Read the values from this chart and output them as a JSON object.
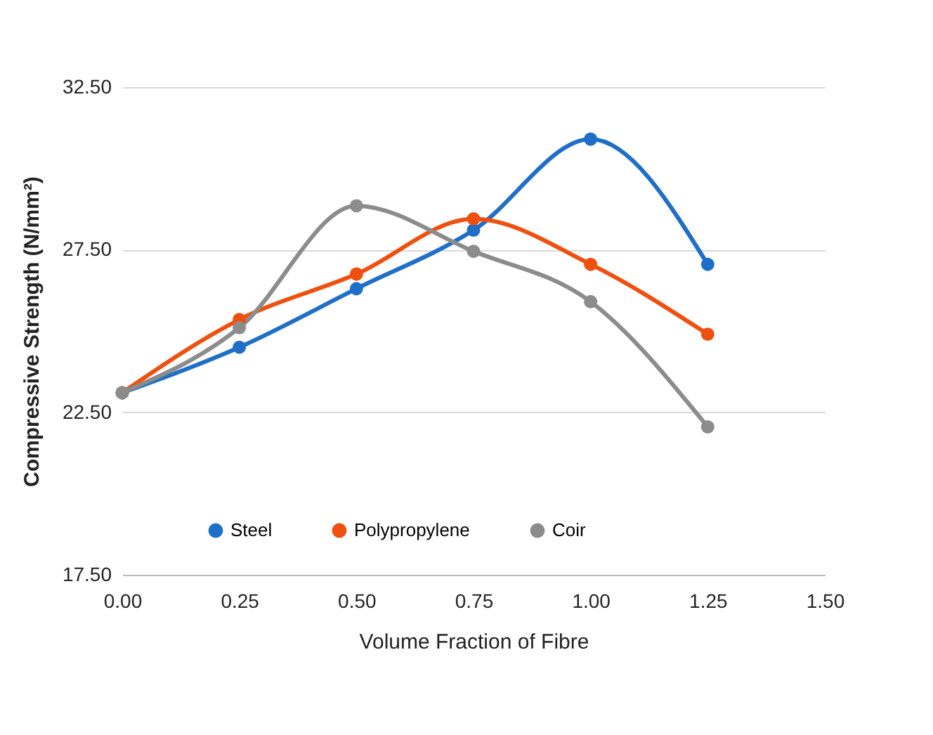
{
  "chart_data": {
    "type": "line",
    "xlabel": "Volume Fraction of Fibre",
    "ylabel": "Compressive Strength (N/mm²)",
    "x": [
      0,
      0.25,
      0.5,
      0.75,
      1.0,
      1.25
    ],
    "series": [
      {
        "name": "Steel",
        "color": "#1f6fc8",
        "values": [
          23.1,
          24.5,
          26.3,
          28.1,
          30.9,
          27.05
        ]
      },
      {
        "name": "Polypropylene",
        "color": "#f0500f",
        "values": [
          23.1,
          25.35,
          26.75,
          28.45,
          27.05,
          24.9
        ]
      },
      {
        "name": "Coir",
        "color": "#8c8c8c",
        "values": [
          23.1,
          25.1,
          28.85,
          27.45,
          25.9,
          22.05
        ]
      }
    ],
    "xlim": [
      0,
      1.5
    ],
    "xticks": [
      {
        "value": 0,
        "label": "0.00"
      },
      {
        "value": 0.25,
        "label": "0.25"
      },
      {
        "value": 0.5,
        "label": "0.50"
      },
      {
        "value": 0.75,
        "label": "0.75"
      },
      {
        "value": 1,
        "label": "1.00"
      },
      {
        "value": 1.25,
        "label": "1.25"
      },
      {
        "value": 1.5,
        "label": "1.50"
      }
    ],
    "ylim": [
      17.5,
      32.5
    ],
    "yticks": [
      {
        "value": 17.5,
        "label": "17.50"
      },
      {
        "value": 22.5,
        "label": "22.50"
      },
      {
        "value": 27.5,
        "label": "27.50"
      },
      {
        "value": 32.5,
        "label": "32.50"
      }
    ],
    "grid": "y",
    "legend": "bottom",
    "marker": "circle",
    "line_style": "solid"
  }
}
